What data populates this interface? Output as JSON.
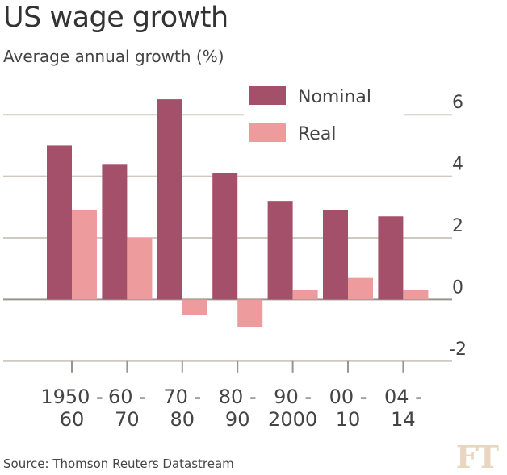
{
  "header": {
    "title": "US wage growth",
    "subtitle": "Average annual growth (%)"
  },
  "footer": {
    "source": "Source: Thomson Reuters Datastream",
    "logo": "FT"
  },
  "colors": {
    "nominal": "#a5506a",
    "real": "#ee9b9d",
    "grid": "#cfc9c2",
    "zero_axis": "#9a948e"
  },
  "chart_data": {
    "type": "bar",
    "title": "US wage growth",
    "subtitle": "Average annual growth (%)",
    "categories": [
      [
        "1950 -",
        "60"
      ],
      [
        "60 -",
        "70"
      ],
      [
        "70 -",
        "80"
      ],
      [
        "80 -",
        "90"
      ],
      [
        "90 -",
        "2000"
      ],
      [
        "00 -",
        "10"
      ],
      [
        "04 -",
        "14"
      ]
    ],
    "series": [
      {
        "name": "Nominal",
        "values": [
          5.0,
          4.4,
          6.5,
          4.1,
          3.2,
          2.9,
          2.7
        ]
      },
      {
        "name": "Real",
        "values": [
          2.9,
          2.0,
          -0.5,
          -0.9,
          0.3,
          0.7,
          0.3
        ]
      }
    ],
    "ylim": [
      -2.4,
      6.4
    ],
    "yticks": [
      -2,
      0,
      2,
      4,
      6
    ],
    "ytick_labels": [
      "-2",
      "0",
      "2",
      "4",
      "6"
    ],
    "y_axis_side": "right",
    "grid": true,
    "legend": "top-right"
  }
}
